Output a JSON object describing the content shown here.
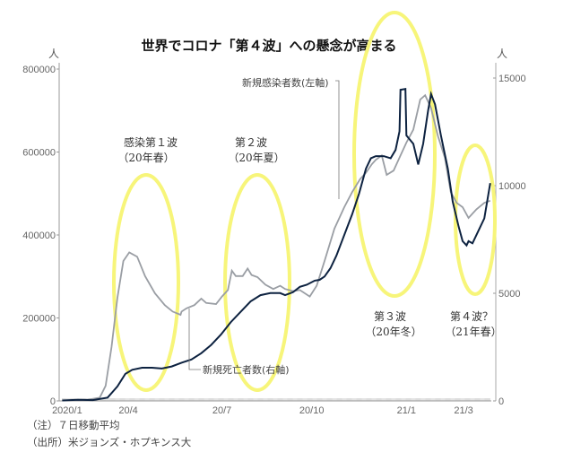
{
  "chart_data": {
    "type": "line",
    "title": "世界でコロナ「第４波」への懸念が高まる",
    "x_unit": "days since 2020-01-01",
    "x_ticks": [
      {
        "label": "2020/1",
        "day": 29
      },
      {
        "label": "20/4",
        "day": 91
      },
      {
        "label": "20/7",
        "day": 186
      },
      {
        "label": "20/10",
        "day": 277
      },
      {
        "label": "21/1",
        "day": 373
      },
      {
        "label": "21/3",
        "day": 431
      }
    ],
    "xlim": [
      0,
      460
    ],
    "left_axis": {
      "unit": "人",
      "ylim": [
        0,
        800000
      ],
      "ticks": [
        0,
        200000,
        400000,
        600000,
        800000
      ]
    },
    "right_axis": {
      "unit": "人",
      "ylim": [
        0,
        15000
      ],
      "ticks": [
        0,
        5000,
        10000,
        15000
      ]
    },
    "series": [
      {
        "name": "新規感染者数(左軸)",
        "axis": "left",
        "color": "#0d2240",
        "points": [
          [
            24,
            1000
          ],
          [
            40,
            2500
          ],
          [
            55,
            2000
          ],
          [
            70,
            8000
          ],
          [
            80,
            35000
          ],
          [
            88,
            65000
          ],
          [
            95,
            75000
          ],
          [
            105,
            80000
          ],
          [
            115,
            80000
          ],
          [
            125,
            78000
          ],
          [
            135,
            83000
          ],
          [
            145,
            92000
          ],
          [
            155,
            100000
          ],
          [
            165,
            115000
          ],
          [
            175,
            135000
          ],
          [
            185,
            160000
          ],
          [
            195,
            190000
          ],
          [
            205,
            215000
          ],
          [
            215,
            240000
          ],
          [
            225,
            255000
          ],
          [
            235,
            260000
          ],
          [
            245,
            260000
          ],
          [
            250,
            255000
          ],
          [
            258,
            262000
          ],
          [
            265,
            275000
          ],
          [
            272,
            280000
          ],
          [
            280,
            290000
          ],
          [
            285,
            292000
          ],
          [
            290,
            300000
          ],
          [
            296,
            320000
          ],
          [
            302,
            350000
          ],
          [
            310,
            400000
          ],
          [
            318,
            450000
          ],
          [
            325,
            500000
          ],
          [
            332,
            560000
          ],
          [
            337,
            585000
          ],
          [
            342,
            590000
          ],
          [
            350,
            590000
          ],
          [
            357,
            585000
          ],
          [
            362,
            605000
          ],
          [
            366,
            650000
          ],
          [
            367,
            750000
          ],
          [
            372,
            752000
          ],
          [
            373,
            640000
          ],
          [
            380,
            620000
          ],
          [
            385,
            570000
          ],
          [
            390,
            620000
          ],
          [
            395,
            700000
          ],
          [
            398,
            740000
          ],
          [
            402,
            715000
          ],
          [
            408,
            640000
          ],
          [
            415,
            560000
          ],
          [
            420,
            480000
          ],
          [
            426,
            420000
          ],
          [
            430,
            385000
          ],
          [
            434,
            375000
          ],
          [
            436,
            385000
          ],
          [
            440,
            380000
          ],
          [
            445,
            405000
          ],
          [
            452,
            440000
          ],
          [
            458,
            525000
          ]
        ]
      },
      {
        "name": "新規死亡者数(右軸)",
        "axis": "right",
        "color": "#9a9ea4",
        "points": [
          [
            24,
            20
          ],
          [
            50,
            60
          ],
          [
            62,
            150
          ],
          [
            68,
            700
          ],
          [
            74,
            2500
          ],
          [
            80,
            4800
          ],
          [
            86,
            6500
          ],
          [
            92,
            6900
          ],
          [
            100,
            6700
          ],
          [
            108,
            5800
          ],
          [
            118,
            5000
          ],
          [
            128,
            4450
          ],
          [
            136,
            4150
          ],
          [
            144,
            4000
          ],
          [
            145,
            4150
          ],
          [
            150,
            4300
          ],
          [
            158,
            4450
          ],
          [
            165,
            4750
          ],
          [
            170,
            4550
          ],
          [
            180,
            4500
          ],
          [
            186,
            4850
          ],
          [
            192,
            5150
          ],
          [
            196,
            6050
          ],
          [
            200,
            5800
          ],
          [
            207,
            5800
          ],
          [
            212,
            6150
          ],
          [
            216,
            5850
          ],
          [
            222,
            5750
          ],
          [
            230,
            5400
          ],
          [
            238,
            5200
          ],
          [
            245,
            5350
          ],
          [
            250,
            5200
          ],
          [
            258,
            5100
          ],
          [
            265,
            5150
          ],
          [
            275,
            4850
          ],
          [
            282,
            5350
          ],
          [
            290,
            6500
          ],
          [
            300,
            8000
          ],
          [
            310,
            9000
          ],
          [
            318,
            9700
          ],
          [
            326,
            10300
          ],
          [
            332,
            10600
          ],
          [
            338,
            11000
          ],
          [
            342,
            11200
          ],
          [
            348,
            11400
          ],
          [
            353,
            10500
          ],
          [
            360,
            10700
          ],
          [
            366,
            11300
          ],
          [
            373,
            12000
          ],
          [
            380,
            12600
          ],
          [
            387,
            14000
          ],
          [
            392,
            14200
          ],
          [
            398,
            13600
          ],
          [
            405,
            12300
          ],
          [
            412,
            11300
          ],
          [
            418,
            9700
          ],
          [
            424,
            9200
          ],
          [
            430,
            9000
          ],
          [
            436,
            8500
          ],
          [
            444,
            8900
          ],
          [
            452,
            9200
          ],
          [
            458,
            9300
          ]
        ]
      }
    ],
    "annotations": [
      {
        "label": "感染第１波",
        "sub": "（20年春）"
      },
      {
        "label": "第２波",
        "sub": "（20年夏）"
      },
      {
        "label": "第３波",
        "sub": "（20年冬）"
      },
      {
        "label": "第４波？",
        "sub": "（21年春）"
      }
    ],
    "legend_labels": [
      "新規感染者数(左軸)",
      "新規死亡者数(右軸)"
    ],
    "highlight_color": "#f7f57a",
    "grid": false
  },
  "notes": {
    "note1": "（注）７日移動平均",
    "note2": "（出所）米ジョンズ・ホプキンス大"
  }
}
